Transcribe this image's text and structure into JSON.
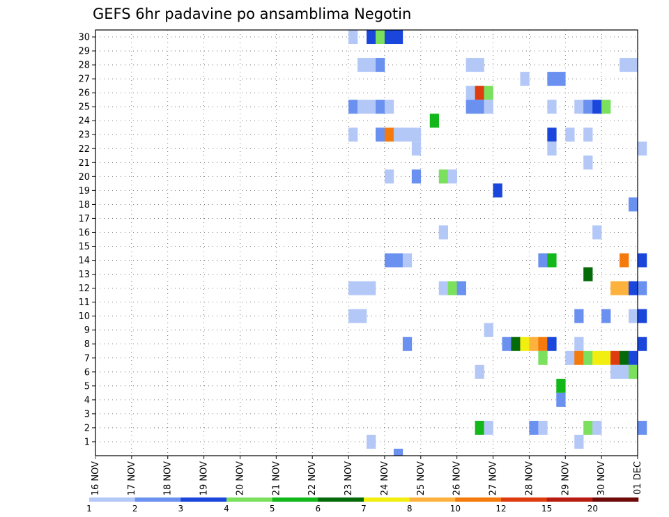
{
  "chart_data": {
    "type": "heatmap",
    "title": "GEFS 6hr padavine po ansamblima Negotin",
    "ylim": [
      0,
      30
    ],
    "y_ticks": [
      "1",
      "2",
      "3",
      "4",
      "5",
      "6",
      "7",
      "8",
      "9",
      "10",
      "11",
      "12",
      "13",
      "14",
      "15",
      "16",
      "17",
      "18",
      "19",
      "20",
      "21",
      "22",
      "23",
      "24",
      "25",
      "26",
      "27",
      "28",
      "29",
      "30"
    ],
    "x_ticks": [
      "16 NOV",
      "17 NOV",
      "18 NOV",
      "19 NOV",
      "20 NOV",
      "21 NOV",
      "22 NOV",
      "23 NOV",
      "24 NOV",
      "25 NOV",
      "26 NOV",
      "27 NOV",
      "28 NOV",
      "29 NOV",
      "30 NOV",
      "01 DEC"
    ],
    "x_unit": "6-hour step from 16 NOV 00Z",
    "grid": "dotted",
    "colorbar": {
      "placement": "bottom",
      "levels": [
        "1",
        "2",
        "3",
        "4",
        "5",
        "6",
        "7",
        "8",
        "10",
        "12",
        "15",
        "20"
      ],
      "colors": [
        "#b4c8f8",
        "#6a90f0",
        "#1a46dc",
        "#7ae05e",
        "#12b81a",
        "#056a0a",
        "#f2ee10",
        "#fcb23c",
        "#f57a0c",
        "#de3c0f",
        "#b81c10",
        "#6e0a08"
      ]
    },
    "cells": [
      [
        28,
        30,
        0
      ],
      [
        30,
        30,
        2
      ],
      [
        31,
        30,
        3
      ],
      [
        32,
        30,
        2
      ],
      [
        33,
        30,
        2
      ],
      [
        29,
        28,
        0
      ],
      [
        30,
        28,
        0
      ],
      [
        31,
        28,
        1
      ],
      [
        41,
        28,
        0
      ],
      [
        42,
        28,
        0
      ],
      [
        58,
        28,
        0
      ],
      [
        59,
        28,
        0
      ],
      [
        47,
        27,
        0
      ],
      [
        50,
        27,
        1
      ],
      [
        51,
        27,
        1
      ],
      [
        41,
        26,
        0
      ],
      [
        42,
        26,
        9
      ],
      [
        43,
        26,
        3
      ],
      [
        28,
        25,
        1
      ],
      [
        29,
        25,
        0
      ],
      [
        30,
        25,
        0
      ],
      [
        31,
        25,
        1
      ],
      [
        32,
        25,
        0
      ],
      [
        41,
        25,
        1
      ],
      [
        42,
        25,
        1
      ],
      [
        43,
        25,
        0
      ],
      [
        50,
        25,
        0
      ],
      [
        53,
        25,
        0
      ],
      [
        54,
        25,
        1
      ],
      [
        55,
        25,
        2
      ],
      [
        56,
        25,
        3
      ],
      [
        37,
        24,
        4
      ],
      [
        28,
        23,
        0
      ],
      [
        31,
        23,
        1
      ],
      [
        32,
        23,
        8
      ],
      [
        33,
        23,
        0
      ],
      [
        34,
        23,
        0
      ],
      [
        35,
        23,
        0
      ],
      [
        50,
        23,
        2
      ],
      [
        52,
        23,
        0
      ],
      [
        54,
        23,
        0
      ],
      [
        35,
        22,
        0
      ],
      [
        50,
        22,
        0
      ],
      [
        60,
        22,
        0
      ],
      [
        54,
        21,
        0
      ],
      [
        32,
        20,
        0
      ],
      [
        35,
        20,
        1
      ],
      [
        38,
        20,
        3
      ],
      [
        39,
        20,
        0
      ],
      [
        44,
        19,
        2
      ],
      [
        59,
        18,
        1
      ],
      [
        38,
        16,
        0
      ],
      [
        55,
        16,
        0
      ],
      [
        32,
        14,
        1
      ],
      [
        33,
        14,
        1
      ],
      [
        34,
        14,
        0
      ],
      [
        49,
        14,
        1
      ],
      [
        50,
        14,
        4
      ],
      [
        58,
        14,
        8
      ],
      [
        60,
        14,
        2
      ],
      [
        54,
        13,
        5
      ],
      [
        28,
        12,
        0
      ],
      [
        29,
        12,
        0
      ],
      [
        30,
        12,
        0
      ],
      [
        38,
        12,
        0
      ],
      [
        39,
        12,
        3
      ],
      [
        40,
        12,
        1
      ],
      [
        57,
        12,
        7
      ],
      [
        58,
        12,
        7
      ],
      [
        59,
        12,
        2
      ],
      [
        60,
        12,
        1
      ],
      [
        28,
        10,
        0
      ],
      [
        29,
        10,
        0
      ],
      [
        53,
        10,
        1
      ],
      [
        56,
        10,
        1
      ],
      [
        59,
        10,
        0
      ],
      [
        60,
        10,
        2
      ],
      [
        43,
        9,
        0
      ],
      [
        34,
        8,
        1
      ],
      [
        45,
        8,
        1
      ],
      [
        46,
        8,
        5
      ],
      [
        47,
        8,
        6
      ],
      [
        48,
        8,
        7
      ],
      [
        49,
        8,
        8
      ],
      [
        50,
        8,
        2
      ],
      [
        53,
        8,
        0
      ],
      [
        60,
        8,
        2
      ],
      [
        49,
        7,
        3
      ],
      [
        52,
        7,
        0
      ],
      [
        53,
        7,
        8
      ],
      [
        54,
        7,
        3
      ],
      [
        55,
        7,
        6
      ],
      [
        56,
        7,
        6
      ],
      [
        57,
        7,
        9
      ],
      [
        58,
        7,
        5
      ],
      [
        59,
        7,
        2
      ],
      [
        42,
        6,
        0
      ],
      [
        57,
        6,
        0
      ],
      [
        58,
        6,
        0
      ],
      [
        59,
        6,
        3
      ],
      [
        51,
        5,
        4
      ],
      [
        51,
        4,
        1
      ],
      [
        42,
        2,
        4
      ],
      [
        43,
        2,
        0
      ],
      [
        48,
        2,
        1
      ],
      [
        49,
        2,
        0
      ],
      [
        54,
        2,
        3
      ],
      [
        55,
        2,
        0
      ],
      [
        60,
        2,
        1
      ],
      [
        30,
        1,
        0
      ],
      [
        53,
        1,
        0
      ],
      [
        33,
        0,
        1
      ]
    ]
  }
}
